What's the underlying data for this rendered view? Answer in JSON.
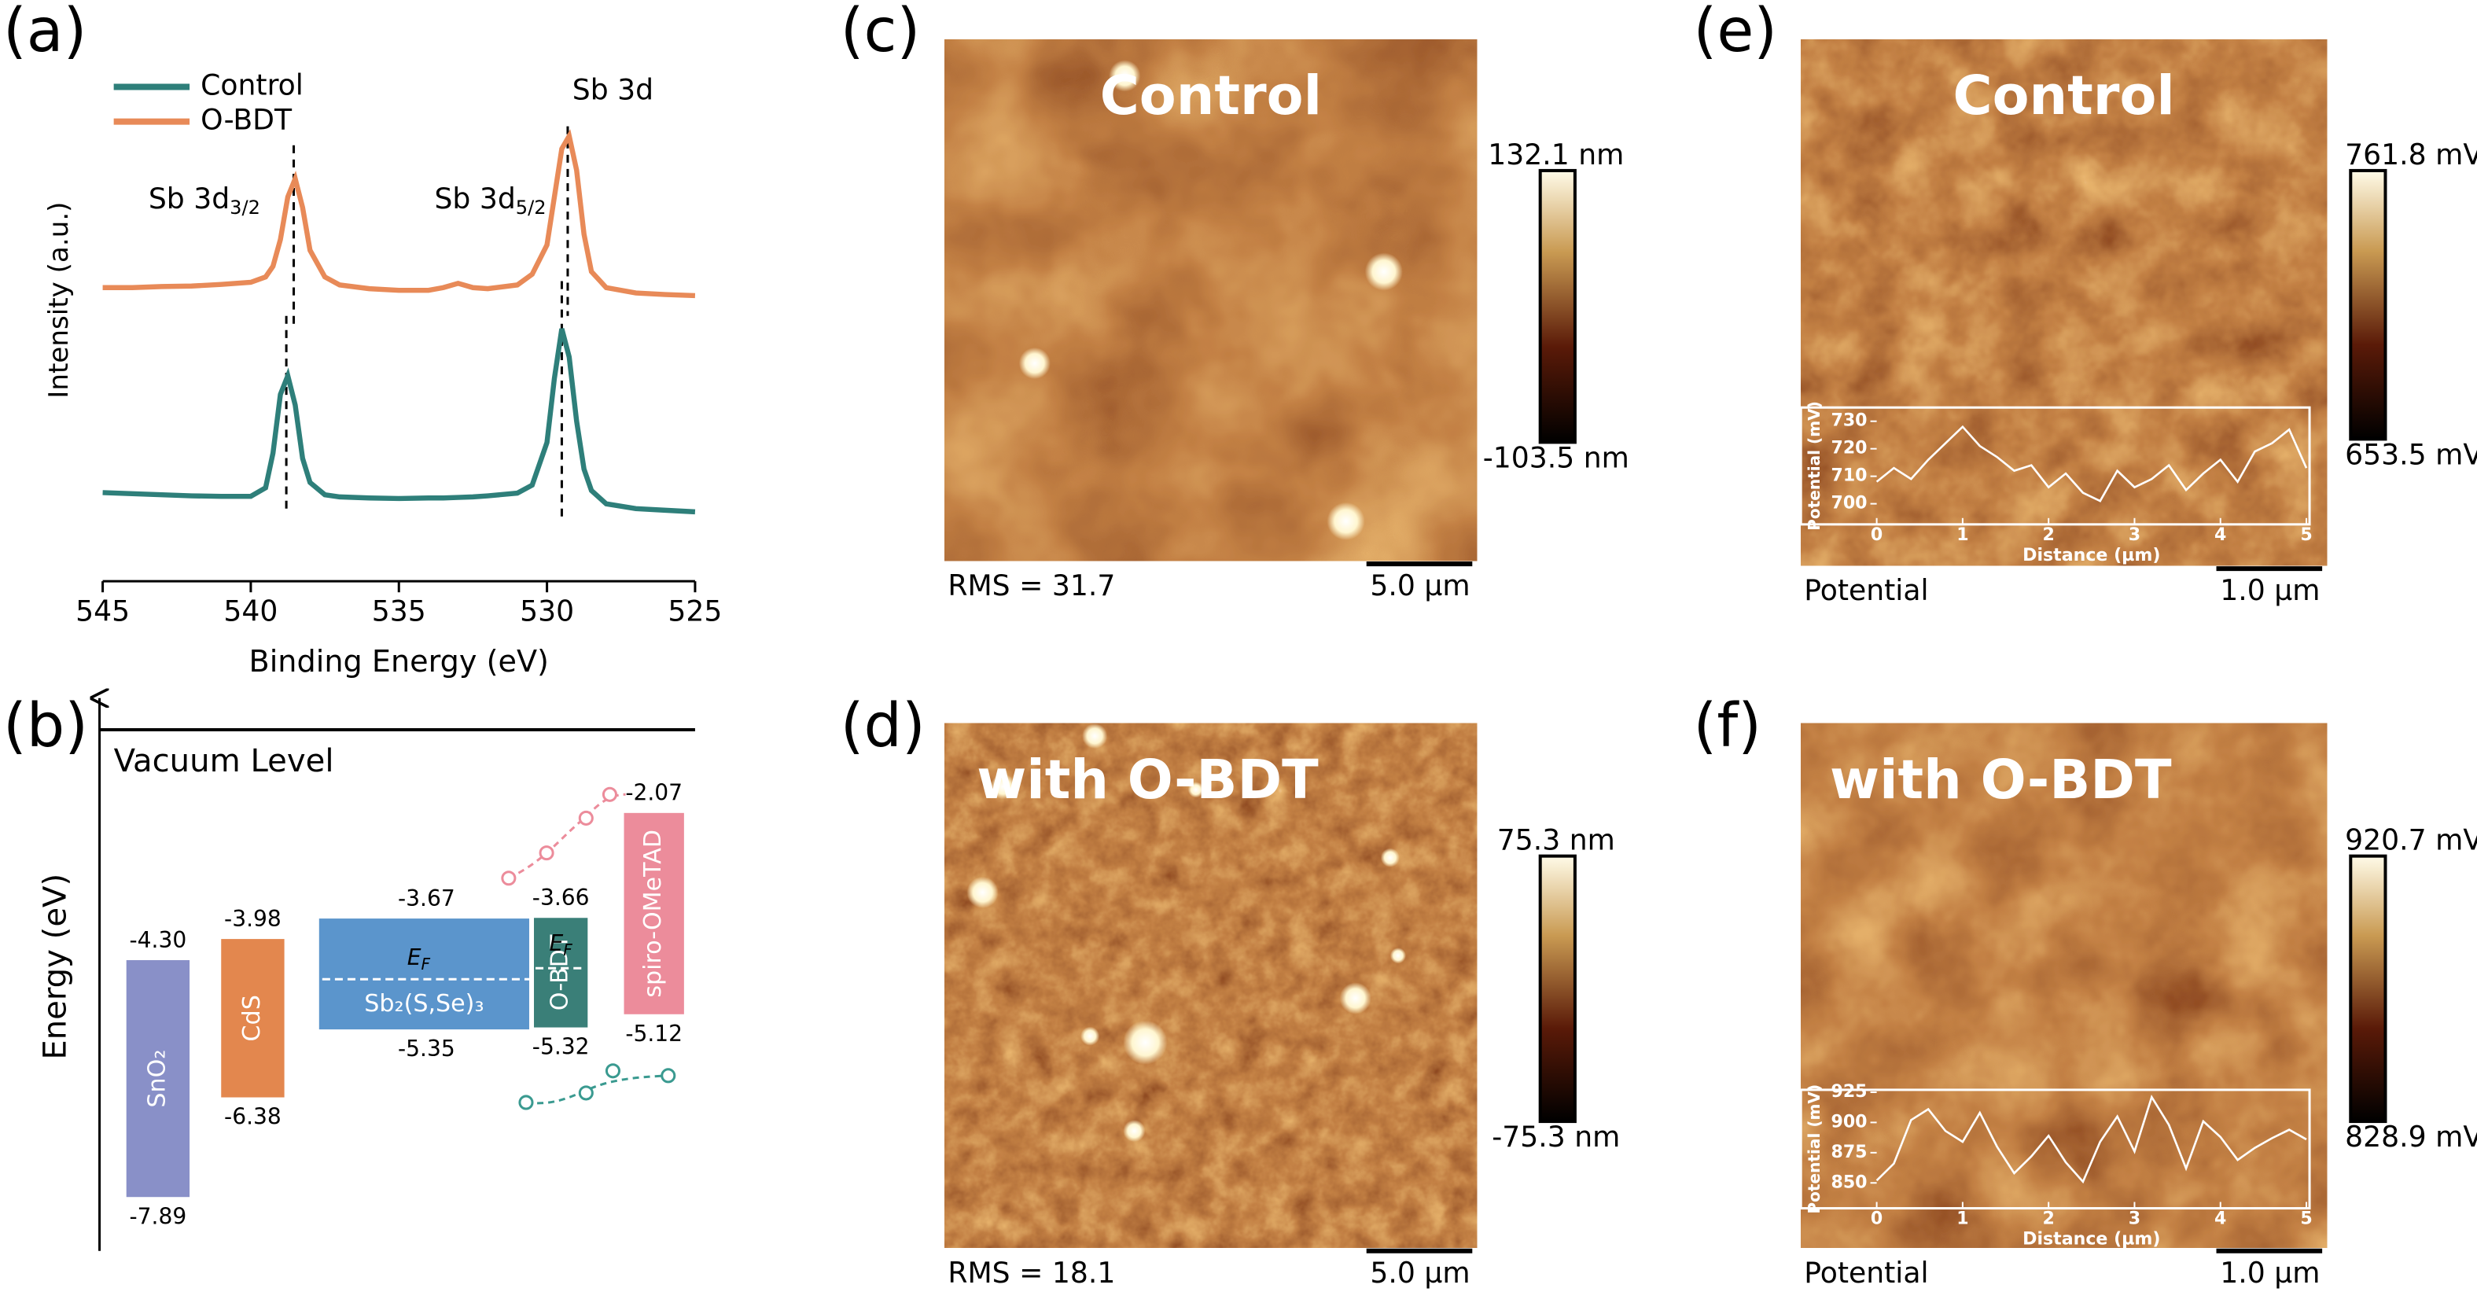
{
  "panel_labels": [
    "(a)",
    "(b)",
    "(c)",
    "(d)",
    "(e)",
    "(f)"
  ],
  "chart_data": [
    {
      "type": "line",
      "xlabel": "Binding Energy (eV)",
      "ylabel": "Intensity (a.u.)",
      "x": [
        545,
        544,
        543,
        542,
        541,
        540,
        539.5,
        539.25,
        539,
        538.75,
        538.5,
        538.25,
        538,
        537.5,
        537,
        536,
        535,
        534,
        533.5,
        533,
        532.5,
        532,
        531,
        530.5,
        530,
        529.75,
        529.5,
        529.25,
        529,
        528.75,
        528.5,
        528,
        527,
        526,
        525
      ],
      "xlim": [
        545,
        525
      ],
      "xticks": [
        545,
        540,
        535,
        530,
        525
      ],
      "ylim": [
        0,
        100
      ],
      "legend": "upper left",
      "series": [
        {
          "name": "Control",
          "color": "#2e7f7a",
          "values": [
            16.6,
            16.4,
            16.2,
            16,
            15.9,
            15.9,
            17.5,
            24,
            35,
            38.5,
            33,
            23,
            18.5,
            16.2,
            15.8,
            15.6,
            15.5,
            15.6,
            15.6,
            15.7,
            15.8,
            16,
            16.5,
            18,
            26,
            38,
            47.3,
            42,
            30,
            21,
            17,
            14.5,
            13.6,
            13.3,
            13
          ]
        },
        {
          "name": "O-BDT",
          "color": "#e88a58",
          "values": [
            55,
            55,
            55.2,
            55.3,
            55.6,
            56,
            57,
            59,
            64,
            72,
            75.4,
            70,
            62,
            57,
            55.5,
            54.8,
            54.5,
            54.5,
            55,
            55.8,
            55,
            54.8,
            55.5,
            57.5,
            63,
            72,
            81,
            83.4,
            77,
            65,
            58,
            55,
            54,
            53.7,
            53.5
          ]
        }
      ],
      "annotations": [
        {
          "text": "Sb 3d",
          "sub": "3/2"
        },
        {
          "text": "Sb 3d",
          "sub": "5/2"
        },
        {
          "text": "Sb 3d"
        }
      ],
      "peak_lines": [
        538.8,
        538.55,
        529.5,
        529.3
      ]
    },
    {
      "type": "line",
      "xlabel": "Distance (µm)",
      "ylabel": "Potential (mV)",
      "x": [
        0,
        0.2,
        0.4,
        0.6,
        0.8,
        1,
        1.2,
        1.4,
        1.6,
        1.8,
        2,
        2.2,
        2.4,
        2.6,
        2.8,
        3,
        3.2,
        3.4,
        3.6,
        3.8,
        4,
        4.2,
        4.4,
        4.6,
        4.8,
        5
      ],
      "xlim": [
        0,
        5
      ],
      "xticks": [
        0,
        1,
        2,
        3,
        4,
        5
      ],
      "ylim": [
        692.5,
        735
      ],
      "yticks": [
        700,
        710,
        720,
        730
      ],
      "series": [
        {
          "color": "#ffffff",
          "values": [
            708,
            713,
            709,
            716,
            722,
            728,
            721,
            717,
            712,
            714,
            706,
            711,
            704,
            701,
            712,
            706,
            709,
            714,
            705,
            711,
            716,
            708,
            719,
            722,
            727,
            713
          ]
        }
      ]
    },
    {
      "type": "line",
      "xlabel": "Distance (µm)",
      "ylabel": "Potential (mV)",
      "x": [
        0,
        0.2,
        0.4,
        0.6,
        0.8,
        1,
        1.2,
        1.4,
        1.6,
        1.8,
        2,
        2.2,
        2.4,
        2.6,
        2.8,
        3,
        3.2,
        3.4,
        3.6,
        3.8,
        4,
        4.2,
        4.4,
        4.6,
        4.8,
        5
      ],
      "xlim": [
        0,
        5
      ],
      "xticks": [
        0,
        1,
        2,
        3,
        4,
        5
      ],
      "ylim": [
        829,
        927
      ],
      "yticks": [
        850,
        875,
        900,
        925
      ],
      "series": [
        {
          "color": "#ffffff",
          "values": [
            852,
            866,
            902,
            911,
            893,
            884,
            908,
            880,
            858,
            872,
            889,
            867,
            851,
            884,
            905,
            876,
            921,
            898,
            862,
            901,
            888,
            869,
            879,
            887,
            894,
            886
          ]
        }
      ]
    }
  ],
  "energy_diagram": {
    "axis_label": "Energy (eV)",
    "vacuum_level": "Vacuum Level",
    "ylim": [
      -8.3,
      -1.0
    ],
    "materials": [
      {
        "name": "SnO₂",
        "color": "#8990c8",
        "cbm": {
          "value": -4.3,
          "label": "-4.30"
        },
        "vbm": {
          "value": -7.89,
          "label": "-7.89"
        }
      },
      {
        "name": "CdS",
        "color": "#e3874e",
        "cbm": {
          "value": -3.98,
          "label": "-3.98"
        },
        "vbm": {
          "value": -6.38,
          "label": "-6.38"
        }
      },
      {
        "name": "Sb₂(S,Se)₃",
        "color": "#5b95cc",
        "cbm": {
          "value": -3.67,
          "label": "-3.67"
        },
        "vbm": {
          "value": -5.35,
          "label": "-5.35"
        },
        "fermi": {
          "text": "E",
          "sub": "F"
        }
      },
      {
        "name": "O-BDT",
        "color": "#3a7f78",
        "cbm": {
          "value": -3.66,
          "label": "-3.66"
        },
        "vbm": {
          "value": -5.32,
          "label": "-5.32"
        },
        "fermi": {
          "text": "E",
          "sub": "F"
        }
      },
      {
        "name": "spiro-OMeTAD",
        "color": "#ec8c9b",
        "cbm": {
          "value": -2.07,
          "label": "-2.07"
        },
        "vbm": {
          "value": -5.12,
          "label": "-5.12"
        }
      }
    ]
  },
  "afm_images": [
    {
      "title": "Control",
      "colorbar_max": "132.1 nm",
      "colorbar_min": "-103.5 nm",
      "caption": "RMS = 31.7",
      "scale_bar": "5.0 µm"
    },
    {
      "title": "with O-BDT",
      "colorbar_max": "75.3 nm",
      "colorbar_min": "-75.3 nm",
      "caption": "RMS = 18.1",
      "scale_bar": "5.0 µm"
    },
    {
      "title": "Control",
      "colorbar_max": "761.8 mV",
      "colorbar_min": "653.5 mV",
      "caption": "Potential",
      "scale_bar": "1.0 µm"
    },
    {
      "title": "with O-BDT",
      "colorbar_max": "920.7 mV",
      "colorbar_min": "828.9 mV",
      "caption": "Potential",
      "scale_bar": "1.0 µm"
    }
  ]
}
